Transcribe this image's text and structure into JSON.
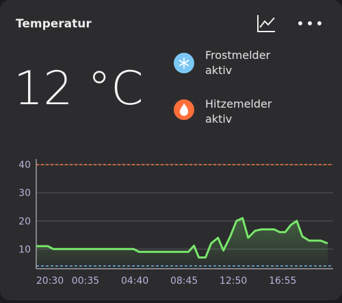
{
  "header": {
    "title": "Temperatur"
  },
  "current": {
    "value": "12 °C"
  },
  "status": [
    {
      "line1": "Frostmelder",
      "line2": "aktiv"
    },
    {
      "line1": "Hitzemelder",
      "line2": "aktiv"
    }
  ],
  "chart_data": {
    "type": "line",
    "x": [
      20.5,
      21.47,
      21.92,
      28.57,
      29.02,
      33.11,
      33.57,
      33.97,
      34.53,
      34.99,
      35.56,
      36.01,
      36.58,
      37.09,
      37.6,
      38.06,
      38.63,
      39.19,
      40.22,
      40.67,
      41.13,
      41.58,
      42.09,
      42.55,
      43.11,
      44.08,
      44.65
    ],
    "series": [
      {
        "color": "#78e86a",
        "values": [
          11,
          11,
          10,
          10,
          9,
          9,
          11.2,
          7,
          7,
          12,
          14,
          9.5,
          14.5,
          20,
          21,
          14,
          16.5,
          17,
          17,
          16,
          16,
          18.5,
          20,
          14.5,
          13,
          13,
          12
        ]
      }
    ],
    "xlim": [
      20.5,
      45.1
    ],
    "ylim": [
      3,
      42
    ],
    "xticks": [
      {
        "value": 20.5,
        "label": "20:30"
      },
      {
        "value": 24.58,
        "label": "00:35"
      },
      {
        "value": 28.67,
        "label": "04:40"
      },
      {
        "value": 32.75,
        "label": "08:45"
      },
      {
        "value": 36.83,
        "label": "12:50"
      },
      {
        "value": 40.92,
        "label": "16:55"
      }
    ],
    "yticks": [
      10,
      20,
      30,
      40
    ],
    "grid": true,
    "thresholds": [
      {
        "value": 40,
        "color": "#ff7a45"
      },
      {
        "value": 4,
        "color": "#6fb8f0"
      }
    ]
  }
}
